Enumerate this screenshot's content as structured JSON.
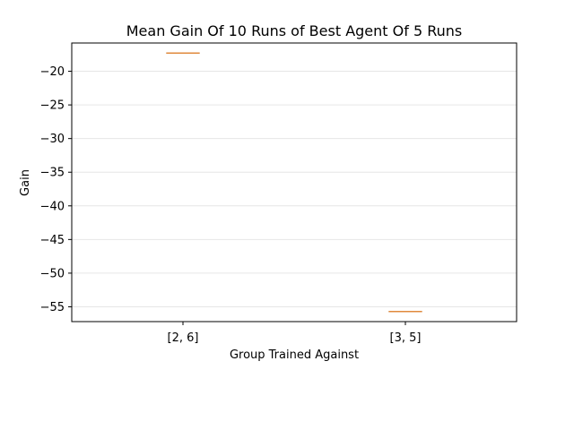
{
  "chart_data": {
    "type": "box",
    "title": "Mean Gain Of 10 Runs of Best Agent Of 5 Runs",
    "xlabel": "Group Trained Against",
    "ylabel": "Gain",
    "categories": [
      "[2, 6]",
      "[3, 5]"
    ],
    "values": [
      -17.3,
      -55.7
    ],
    "yticks": [
      -20,
      -25,
      -30,
      -35,
      -40,
      -45,
      -50,
      -55
    ],
    "ylim": [
      -57.2,
      -15.8
    ],
    "grid": "horizontal",
    "colors": {
      "median": "#e08a3c",
      "box": "#333333",
      "grid": "#e6e6e6"
    }
  }
}
